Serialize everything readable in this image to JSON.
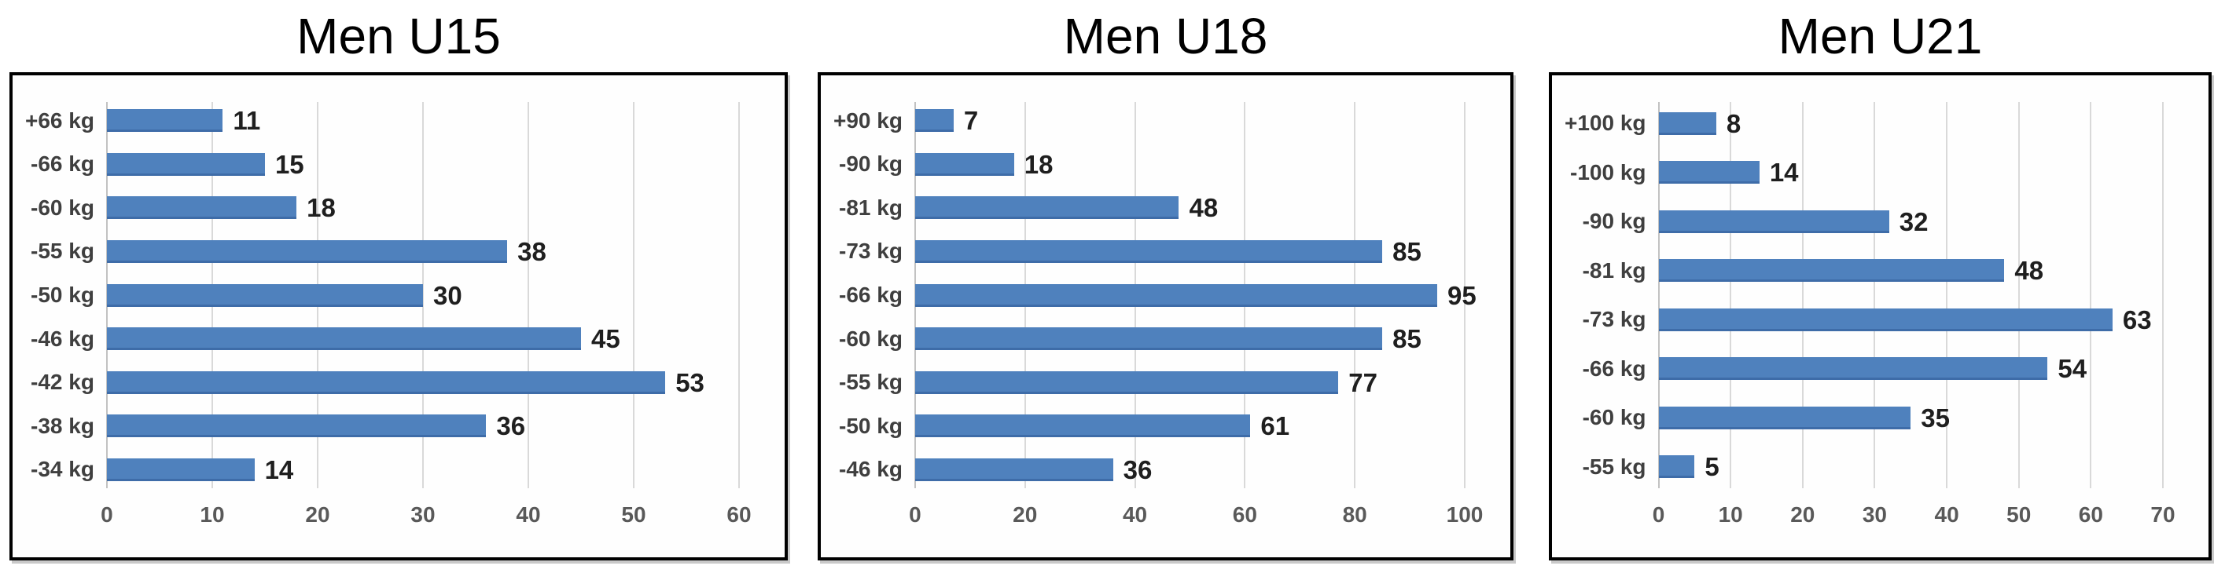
{
  "page": {
    "description": "Three horizontal bar charts of participant counts per men's weight category by age group"
  },
  "colors": {
    "background": "#ffffff",
    "panel_background": "#fefefe",
    "panel_border": "#000000",
    "panel_shadow": "#c9c9c9",
    "title": "#000000",
    "bar_fill": "#4f81bd",
    "bar_edge": "#3e6ca8",
    "gridline": "#d9d9d9",
    "axis_line": "#c2c2c2",
    "category_label": "#3f3f3f",
    "tick_label": "#595959",
    "data_label": "#1f1f1f"
  },
  "chart_data": [
    {
      "type": "bar",
      "orientation": "horizontal",
      "title": "Men U15",
      "categories": [
        "+66 kg",
        "-66 kg",
        "-60 kg",
        "-55 kg",
        "-50 kg",
        "-46 kg",
        "-42 kg",
        "-38 kg",
        "-34 kg"
      ],
      "values": [
        11,
        15,
        18,
        38,
        30,
        45,
        53,
        36,
        14
      ],
      "xlim": [
        0,
        60
      ],
      "xticks": [
        0,
        10,
        20,
        30,
        40,
        50,
        60
      ],
      "grid": true,
      "data_labels": true,
      "legend": "none"
    },
    {
      "type": "bar",
      "orientation": "horizontal",
      "title": "Men U18",
      "categories": [
        "+90 kg",
        "-90 kg",
        "-81 kg",
        "-73 kg",
        "-66 kg",
        "-60 kg",
        "-55 kg",
        "-50 kg",
        "-46 kg"
      ],
      "values": [
        7,
        18,
        48,
        85,
        95,
        85,
        77,
        61,
        36
      ],
      "xlim": [
        0,
        100
      ],
      "xticks": [
        0,
        20,
        40,
        60,
        80,
        100
      ],
      "grid": true,
      "data_labels": true,
      "legend": "none"
    },
    {
      "type": "bar",
      "orientation": "horizontal",
      "title": "Men U21",
      "categories": [
        "+100 kg",
        "-100 kg",
        "-90 kg",
        "-81 kg",
        "-73 kg",
        "-66 kg",
        "-60 kg",
        "-55 kg"
      ],
      "values": [
        8,
        14,
        32,
        48,
        63,
        54,
        35,
        5
      ],
      "xlim": [
        0,
        70
      ],
      "xticks": [
        0,
        10,
        20,
        30,
        40,
        50,
        60,
        70
      ],
      "grid": true,
      "data_labels": true,
      "legend": "none"
    }
  ]
}
